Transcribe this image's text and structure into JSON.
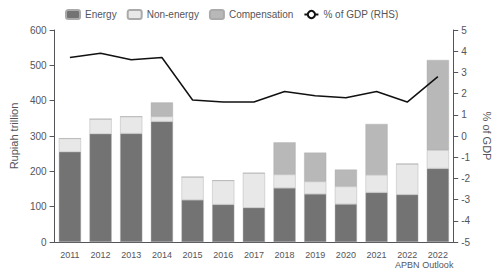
{
  "chart_data": {
    "type": "bar",
    "stacked": true,
    "grid": false,
    "legend": "upper left",
    "categories": [
      "2011",
      "2012",
      "2013",
      "2014",
      "2015",
      "2016",
      "2017",
      "2018",
      "2019",
      "2020",
      "2021",
      "2022\nAPBN",
      "2022\nOutlook"
    ],
    "series": [
      {
        "name": "Energy",
        "type": "bar",
        "color": "#737373",
        "values": [
          255,
          306,
          307,
          341,
          119,
          106,
          97,
          153,
          136,
          107,
          140,
          134,
          208
        ]
      },
      {
        "name": "Non-energy",
        "type": "bar",
        "color": "#e8e8e8",
        "values": [
          38,
          42,
          48,
          14,
          65,
          68,
          98,
          38,
          35,
          50,
          50,
          87,
          52
        ]
      },
      {
        "name": "Compensation",
        "type": "bar",
        "color": "#b8b8b8",
        "values": [
          0,
          0,
          0,
          40,
          0,
          0,
          0,
          91,
          82,
          48,
          144,
          0,
          255
        ]
      },
      {
        "name": "% of GDP (RHS)",
        "type": "line",
        "axis": "y2",
        "color": "#111111",
        "values": [
          3.7,
          3.9,
          3.6,
          3.7,
          1.7,
          1.6,
          1.6,
          2.1,
          1.9,
          1.8,
          2.1,
          1.6,
          2.8
        ]
      }
    ],
    "ylabel": "Rupiah trillion",
    "y2label": "% of GDP",
    "ylim": [
      0,
      600
    ],
    "yticks": [
      0,
      100,
      200,
      300,
      400,
      500,
      600
    ],
    "y2lim": [
      -5,
      5
    ],
    "y2ticks": [
      -5,
      -4,
      -3,
      -2,
      -1,
      0,
      1,
      2,
      3,
      4,
      5
    ]
  }
}
